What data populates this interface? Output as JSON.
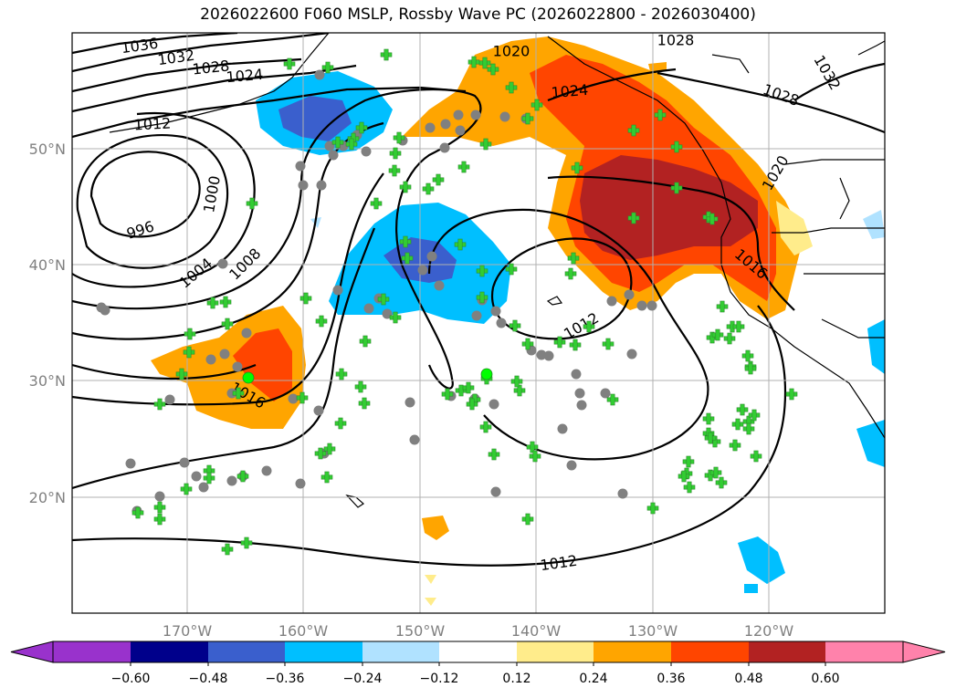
{
  "title": "2026022600 F060 MSLP, Rossby Wave PC (2026022800 - 2026030400)",
  "map": {
    "lon_labels": [
      "170°W",
      "160°W",
      "150°W",
      "140°W",
      "130°W",
      "120°W"
    ],
    "lat_labels": [
      "50°N",
      "40°N",
      "30°N",
      "20°N"
    ],
    "grid": true
  },
  "isobars": {
    "unit": "hPa",
    "labels": [
      "1036",
      "1032",
      "1028",
      "1024",
      "1020",
      "1012",
      "1000",
      "996",
      "1004",
      "1008",
      "1016",
      "1012",
      "1012",
      "1028",
      "1024",
      "1028",
      "1032",
      "1020",
      "1016"
    ]
  },
  "colorbar": {
    "tick_labels": [
      "−0.60",
      "−0.48",
      "−0.36",
      "−0.24",
      "−0.12",
      "0.12",
      "0.24",
      "0.36",
      "0.48",
      "0.60"
    ],
    "colors": [
      "#9932cc",
      "#00008b",
      "#3a5fcd",
      "#00bfff",
      "#b0e2ff",
      "#ffffff",
      "#ffec8b",
      "#ffa500",
      "#ff4500",
      "#b22222",
      "#ff82ab"
    ],
    "extend": "both"
  },
  "markers": {
    "plus_color": "#32cd32",
    "circle_color": "#808080",
    "highlight_color": "#00ff00"
  }
}
